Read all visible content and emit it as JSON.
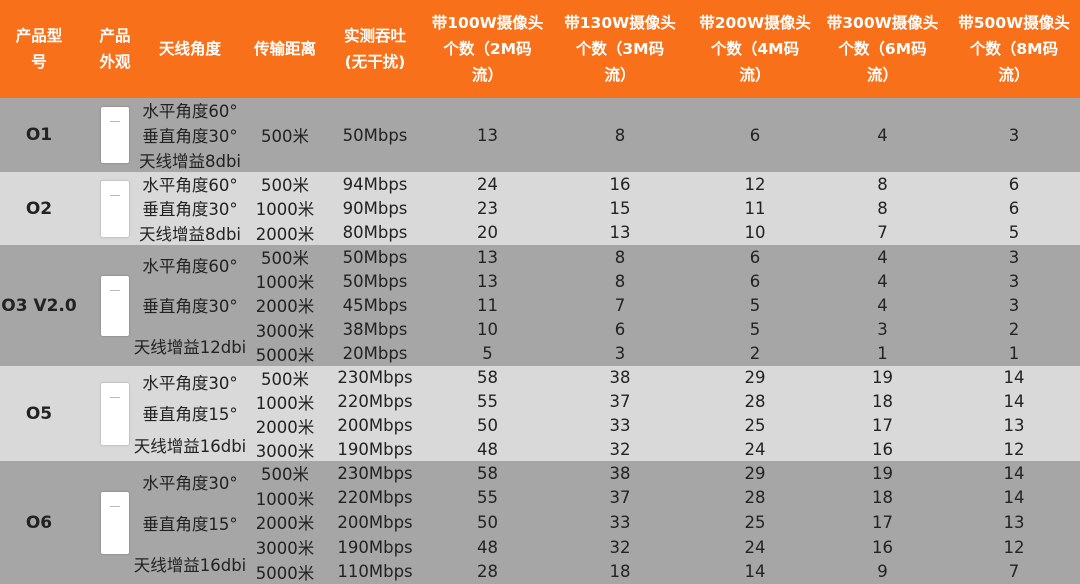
{
  "colors": {
    "header": "#f8701a",
    "row_dark": "#a6a6a6",
    "row_light": "#d9d9d9"
  },
  "header": [
    "产品型\n号",
    "产品\n外观",
    "天线角度",
    "传输距离",
    "实测吞吐\n(无干扰)",
    "带100W摄像头\n个数（2M码\n流）",
    "带130W摄像头\n个数（3M码\n流）",
    "带200W摄像头\n个数（4M码\n流）",
    "带300W摄像头\n个数（6M码\n流）",
    "带500W摄像头\n个数（8M码\n流）"
  ],
  "groups": [
    {
      "model": "O1",
      "image": "device-o1",
      "angle_lines": [
        "水平角度60°",
        "垂直角度30°",
        "天线增益8dbi"
      ],
      "rows": [
        [
          "500米",
          "50Mbps",
          "13",
          "8",
          "6",
          "4",
          "3"
        ]
      ]
    },
    {
      "model": "O2",
      "image": "device-o2",
      "angle_lines": [
        "水平角度60°",
        "垂直角度30°",
        "天线增益8dbi"
      ],
      "rows": [
        [
          "500米",
          "94Mbps",
          "24",
          "16",
          "12",
          "8",
          "6"
        ],
        [
          "1000米",
          "90Mbps",
          "23",
          "15",
          "11",
          "8",
          "6"
        ],
        [
          "2000米",
          "80Mbps",
          "20",
          "13",
          "10",
          "7",
          "5"
        ]
      ]
    },
    {
      "model": "O3 V2.0",
      "image": "device-o3",
      "angle_lines": [
        "水平角度60°",
        "垂直角度30°",
        "天线增益12dbi"
      ],
      "rows": [
        [
          "500米",
          "50Mbps",
          "13",
          "8",
          "6",
          "4",
          "3"
        ],
        [
          "1000米",
          "50Mbps",
          "13",
          "8",
          "6",
          "4",
          "3"
        ],
        [
          "2000米",
          "45Mbps",
          "11",
          "7",
          "5",
          "4",
          "3"
        ],
        [
          "3000米",
          "38Mbps",
          "10",
          "6",
          "5",
          "3",
          "2"
        ],
        [
          "5000米",
          "20Mbps",
          "5",
          "3",
          "2",
          "1",
          "1"
        ]
      ]
    },
    {
      "model": "O5",
      "image": "device-o5",
      "angle_lines": [
        "水平角度30°",
        "垂直角度15°",
        "天线增益16dbi"
      ],
      "rows": [
        [
          "500米",
          "230Mbps",
          "58",
          "38",
          "29",
          "19",
          "14"
        ],
        [
          "1000米",
          "220Mbps",
          "55",
          "37",
          "28",
          "18",
          "14"
        ],
        [
          "2000米",
          "200Mbps",
          "50",
          "33",
          "25",
          "17",
          "13"
        ],
        [
          "3000米",
          "190Mbps",
          "48",
          "32",
          "24",
          "16",
          "12"
        ]
      ]
    },
    {
      "model": "O6",
      "image": "device-o6",
      "angle_lines": [
        "水平角度30°",
        "垂直角度15°",
        "天线增益16dbi"
      ],
      "rows": [
        [
          "500米",
          "230Mbps",
          "58",
          "38",
          "29",
          "19",
          "14"
        ],
        [
          "1000米",
          "220Mbps",
          "55",
          "37",
          "28",
          "18",
          "14"
        ],
        [
          "2000米",
          "200Mbps",
          "50",
          "33",
          "25",
          "17",
          "13"
        ],
        [
          "3000米",
          "190Mbps",
          "48",
          "32",
          "24",
          "16",
          "12"
        ],
        [
          "5000米",
          "110Mbps",
          "28",
          "18",
          "14",
          "9",
          "7"
        ]
      ]
    }
  ]
}
